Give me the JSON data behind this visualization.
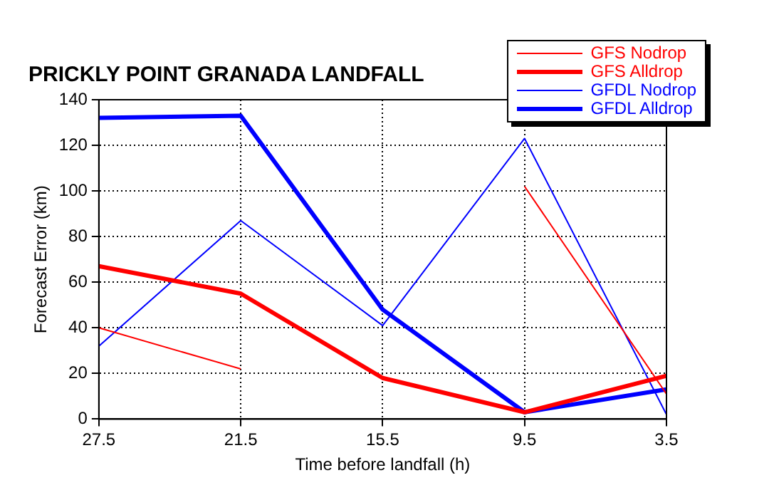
{
  "chart_data": {
    "type": "line",
    "title": "PRICKLY POINT GRANADA LANDFALL",
    "xlabel": "Time before landfall (h)",
    "ylabel": "Forecast Error (km)",
    "x": [
      27.5,
      21.5,
      15.5,
      9.5,
      3.5
    ],
    "series": [
      {
        "name": "GFS Nodrop",
        "color": "#ff0000",
        "values": [
          40,
          22,
          null,
          102,
          11
        ]
      },
      {
        "name": "GFS Alldrop",
        "color": "#ff0000",
        "values": [
          67,
          55,
          18,
          3,
          19
        ]
      },
      {
        "name": "GFDL Nodrop",
        "color": "#0000ff",
        "values": [
          32,
          87,
          41,
          123,
          2
        ]
      },
      {
        "name": "GFDL Alldrop",
        "color": "#0000ff",
        "values": [
          132,
          133,
          48,
          3,
          13
        ]
      }
    ],
    "xlim": [
      27.5,
      3.5
    ],
    "xticks": [
      27.5,
      21.5,
      15.5,
      9.5,
      3.5
    ],
    "ylim": [
      0,
      140
    ],
    "yticks": [
      0,
      20,
      40,
      60,
      80,
      100,
      120,
      140
    ],
    "grid": true,
    "legend": "top right",
    "marker": "none",
    "line_style": "solid"
  }
}
